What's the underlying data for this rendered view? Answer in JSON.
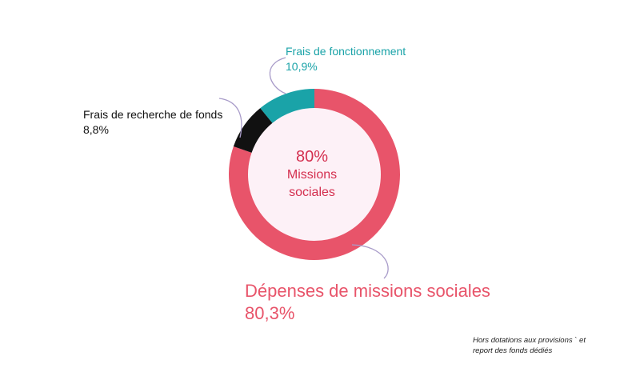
{
  "chart_data": {
    "type": "pie",
    "donut": true,
    "title": "",
    "slices": [
      {
        "label": "Dépenses de missions sociales",
        "value": 80.3,
        "value_label": "80,3%",
        "color": "#e8546a"
      },
      {
        "label": "Frais de recherche de fonds",
        "value": 8.8,
        "value_label": "8,8%",
        "color": "#111111"
      },
      {
        "label": "Frais de fonctionnement",
        "value": 10.9,
        "value_label": "10,9%",
        "color": "#1aa3a8"
      }
    ],
    "center": {
      "value": "80%",
      "text": "Missions sociales",
      "color": "#d42f4f",
      "fill": "#fdf1f7"
    },
    "leader_color": "#a89bc9"
  },
  "footnote": "Hors dotations aux provisions ` et report des fonds dédiés"
}
